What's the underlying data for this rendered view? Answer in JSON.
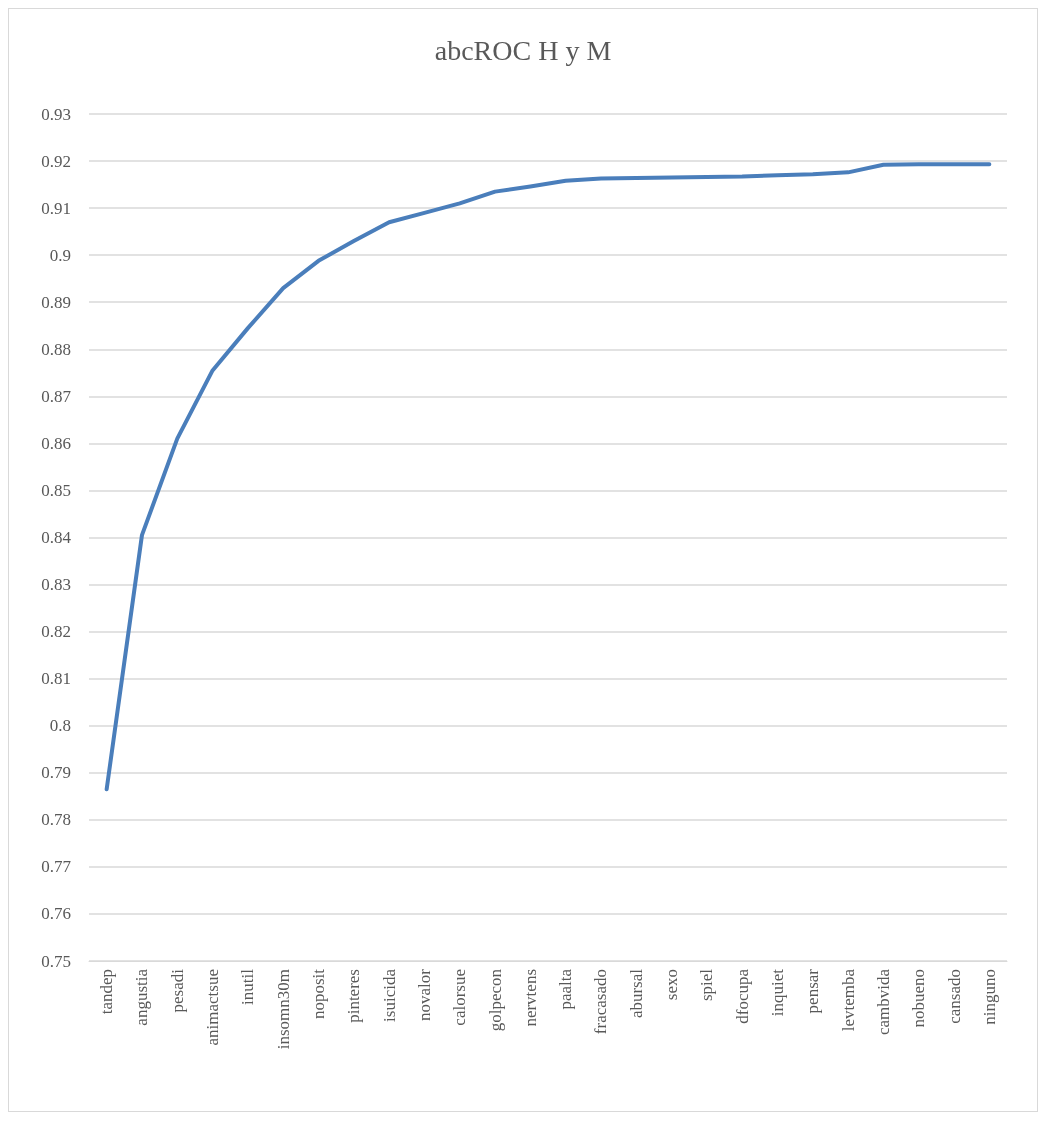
{
  "chart_data": {
    "type": "line",
    "title": "abcROC H y M",
    "categories": [
      "tandep",
      "angustia",
      "pesadi",
      "animactsue",
      "inutil",
      "insomn30m",
      "noposit",
      "pinteres",
      "isuicida",
      "novalor",
      "calorsue",
      "golpecon",
      "nervtens",
      "paalta",
      "fracasado",
      "abursal",
      "sexo",
      "spiel",
      "dfocupa",
      "inquiet",
      "pensar",
      "levtemba",
      "cambvida",
      "nobueno",
      "cansado",
      "ninguno"
    ],
    "series": [
      {
        "color": "#4a7ebb",
        "values": [
          0.7865,
          0.8405,
          0.861,
          0.8755,
          0.8845,
          0.893,
          0.8988,
          0.903,
          0.907,
          0.909,
          0.911,
          0.9135,
          0.9146,
          0.9158,
          0.9163,
          0.9164,
          0.9165,
          0.9166,
          0.9167,
          0.917,
          0.9172,
          0.9176,
          0.9192,
          0.9193,
          0.9193,
          0.9193
        ]
      }
    ],
    "ylim": [
      0.75,
      0.93
    ],
    "yticks": [
      0.75,
      0.76,
      0.77,
      0.78,
      0.79,
      0.8,
      0.81,
      0.82,
      0.83,
      0.84,
      0.85,
      0.86,
      0.87,
      0.88,
      0.89,
      0.9,
      0.91,
      0.92,
      0.93
    ],
    "grid": "y",
    "marker": "none",
    "line_style": "solid"
  }
}
